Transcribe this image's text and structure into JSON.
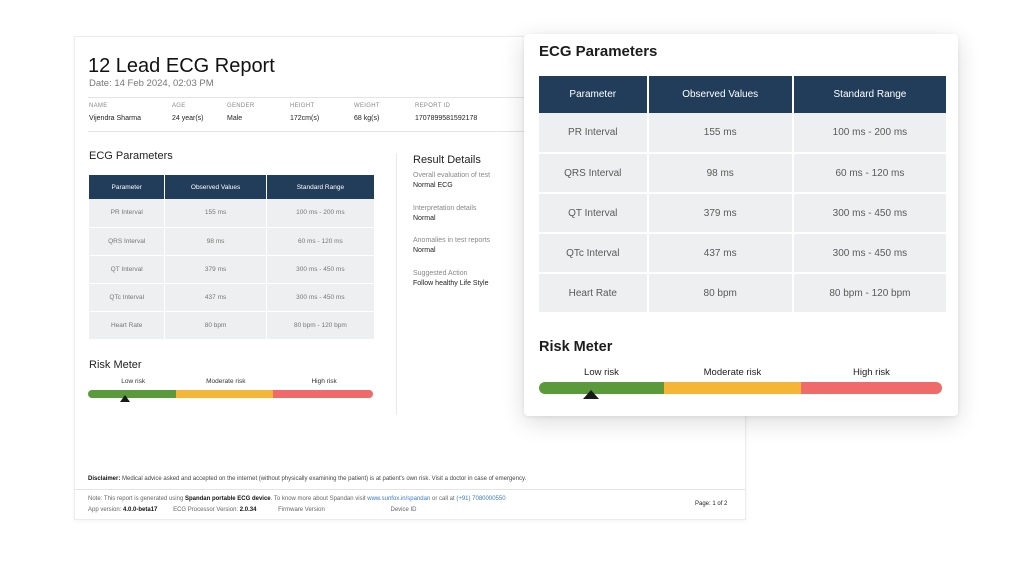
{
  "report": {
    "title": "12 Lead ECG Report",
    "date": "Date: 14 Feb 2024, 02:03 PM",
    "patient": [
      {
        "label": "NAME",
        "value": "Vijendra Sharma"
      },
      {
        "label": "AGE",
        "value": "24 year(s)"
      },
      {
        "label": "GENDER",
        "value": "Male"
      },
      {
        "label": "HEIGHT",
        "value": "172cm(s)"
      },
      {
        "label": "WEIGHT",
        "value": "68 kg(s)"
      },
      {
        "label": "REPORT ID",
        "value": "1707899581592178"
      }
    ],
    "result_details": {
      "title": "Result Details",
      "items": [
        {
          "label": "Overall evaluation of test",
          "value": "Normal ECG"
        },
        {
          "label": "Interpretation details",
          "value": "Normal"
        },
        {
          "label": "Anomalies in test reports",
          "value": "Normal"
        },
        {
          "label": "Suggested Action",
          "value": "Follow healthy Life Style"
        }
      ]
    },
    "disclaimer_label": "Disclaimer:",
    "disclaimer_text": " Medical advice asked and accepted on the internet (without physically examining the patient) is at patient's own risk. Visit a doctor in case of emergency.",
    "note_prefix": "Note: This report is generated using ",
    "note_device": "Spandan portable ECG device",
    "note_mid": ". To know more about Spandan visit ",
    "note_url": "www.sunfox.in/spandan",
    "note_call": " or call at ",
    "note_phone": "(+91) 7080000550",
    "app_version_label": "App version: ",
    "app_version": "4.0.0-beta17",
    "processor_label": "ECG Processor Version: ",
    "processor_version": "2.0.34",
    "firmware_label": "Firmware Version",
    "device_label": "Device ID",
    "page": "Page: 1 of 2"
  },
  "ecg": {
    "title": "ECG Parameters",
    "headers": [
      "Parameter",
      "Observed Values",
      "Standard Range"
    ],
    "rows": [
      [
        "PR Interval",
        "155 ms",
        "100 ms - 200 ms"
      ],
      [
        "QRS Interval",
        "98 ms",
        "60 ms - 120 ms"
      ],
      [
        "QT Interval",
        "379 ms",
        "300 ms - 450 ms"
      ],
      [
        "QTc Interval",
        "437 ms",
        "300 ms - 450 ms"
      ],
      [
        "Heart Rate",
        "80 bpm",
        "80 bpm - 120 bpm"
      ]
    ]
  },
  "risk": {
    "title": "Risk Meter",
    "levels": [
      {
        "label": "Low risk",
        "color": "#5b9a3b",
        "share": 0.31
      },
      {
        "label": "Moderate risk",
        "color": "#f5b638",
        "share": 0.34
      },
      {
        "label": "High risk",
        "color": "#f06a6a",
        "share": 0.35
      }
    ],
    "pointer_position": 0.13,
    "pointer_color": "#1a1a1a"
  }
}
